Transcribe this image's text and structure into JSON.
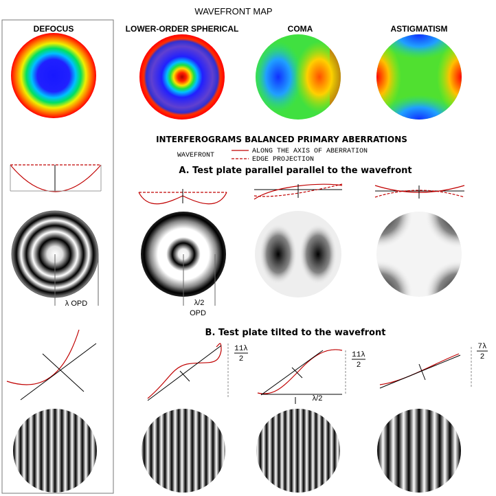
{
  "title": "WAVEFRONT MAP",
  "columns": [
    "DEFOCUS",
    "LOWER-ORDER SPHERICAL",
    "COMA",
    "ASTIGMATISM"
  ],
  "interferograms": {
    "title": "INTERFEROGRAMS BALANCED PRIMARY ABERRATIONS",
    "legend": {
      "label": "WAVEFRONT",
      "solid": "ALONG THE AXIS OF ABERRATION",
      "dashed": "EDGE PROJECTION"
    }
  },
  "section_a": {
    "title": "A. Test plate parallel parallel to the wavefront",
    "labels": [
      "λ OPD",
      "λ/2",
      "OPD"
    ]
  },
  "section_b": {
    "title": "B. Test plate tilted to the wavefront",
    "labels": [
      {
        "num": "11λ",
        "den": "2"
      },
      {
        "num": "11λ",
        "den": "2"
      },
      "λ/2",
      {
        "num": "7λ",
        "den": "2"
      }
    ]
  }
}
